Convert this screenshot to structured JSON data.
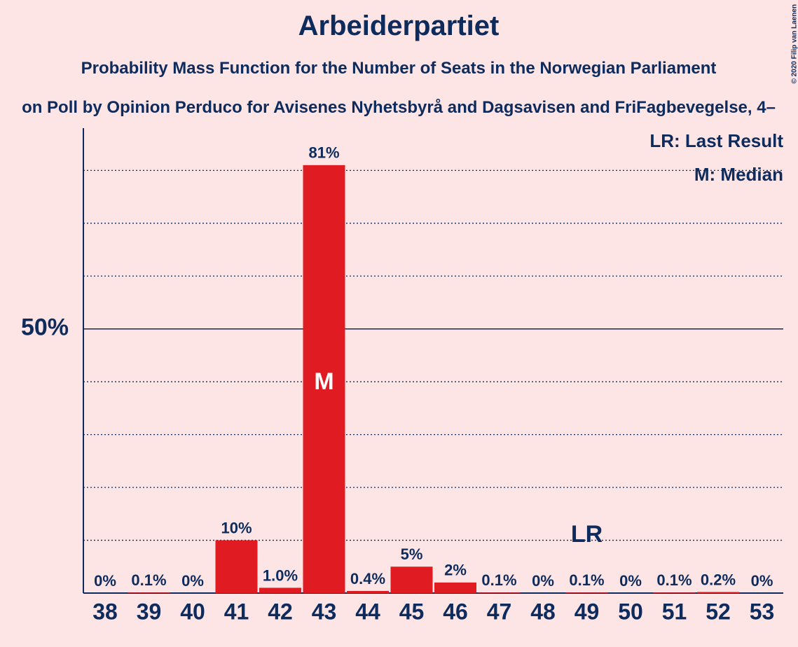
{
  "chart_data": {
    "type": "bar",
    "title": "Arbeiderpartiet",
    "subtitle": "Probability Mass Function for the Number of Seats in the Norwegian Parliament",
    "subtitle2": "on Poll by Opinion Perduco for Avisenes Nyhetsbyrå and Dagsavisen and FriFagbevegelse, 4–",
    "copyright": "© 2020 Filip van Laenen",
    "categories": [
      38,
      39,
      40,
      41,
      42,
      43,
      44,
      45,
      46,
      47,
      48,
      49,
      50,
      51,
      52,
      53
    ],
    "values": [
      0,
      0.1,
      0,
      10,
      1.0,
      81,
      0.4,
      5,
      2,
      0.1,
      0,
      0.1,
      0,
      0.1,
      0.2,
      0
    ],
    "value_labels": [
      "0%",
      "0.1%",
      "0%",
      "10%",
      "1.0%",
      "81%",
      "0.4%",
      "5%",
      "2%",
      "0.1%",
      "0%",
      "0.1%",
      "0%",
      "0.1%",
      "0.2%",
      "0%"
    ],
    "color": "#e01b22",
    "ylim": [
      0,
      88
    ],
    "yticks": [
      {
        "value": 50,
        "label": "50%"
      }
    ],
    "gridlines": [
      10,
      20,
      30,
      40,
      60,
      70,
      80
    ],
    "median": 43,
    "median_label": "M",
    "last_result": 49,
    "last_result_label": "LR",
    "legend": [
      "LR: Last Result",
      "M: Median"
    ]
  }
}
